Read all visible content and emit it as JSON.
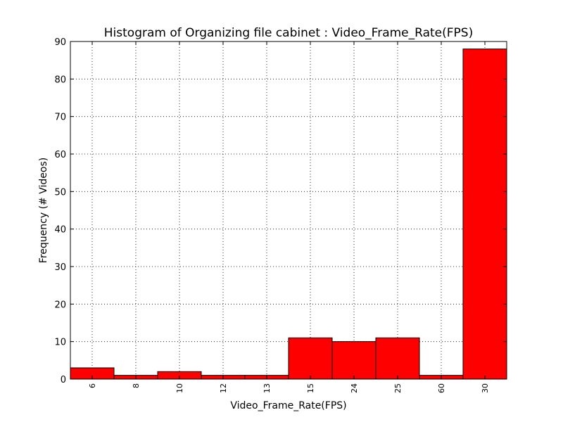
{
  "chart_data": {
    "type": "bar",
    "title": "Histogram of Organizing file cabinet : Video_Frame_Rate(FPS)",
    "xlabel": "Video_Frame_Rate(FPS)",
    "ylabel": "Frequency (# Videos)",
    "categories": [
      "6",
      "8",
      "10",
      "12",
      "13",
      "15",
      "24",
      "25",
      "60",
      "30"
    ],
    "values": [
      3,
      1,
      2,
      1,
      1,
      11,
      10,
      11,
      1,
      88
    ],
    "ylim": [
      0,
      90
    ],
    "yticks": [
      "0",
      "10",
      "20",
      "30",
      "40",
      "50",
      "60",
      "70",
      "80",
      "90"
    ],
    "grid": true,
    "bar_color": "#ff0000"
  }
}
